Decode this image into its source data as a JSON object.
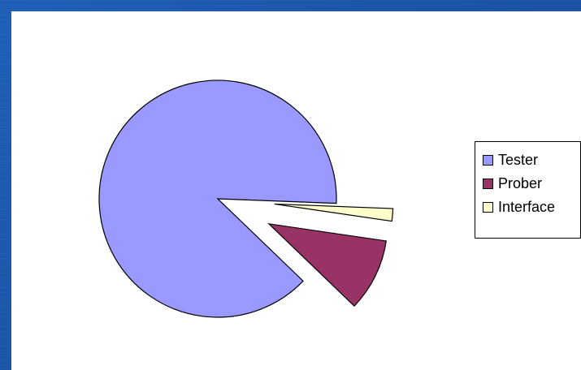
{
  "chart_data": {
    "type": "pie",
    "title": "",
    "labels": [
      "Tester",
      "Prober",
      "Interface"
    ],
    "values": [
      88.4,
      9.9,
      1.7
    ],
    "colors": [
      "#9999ff",
      "#993366",
      "#ffffcc"
    ],
    "exploded": [
      false,
      true,
      true
    ],
    "legend": {
      "position": "right",
      "items": [
        {
          "label": "Tester",
          "color": "#9999ff"
        },
        {
          "label": "Prober",
          "color": "#993366"
        },
        {
          "label": "Interface",
          "color": "#ffffcc"
        }
      ]
    }
  },
  "theme": {
    "slide_background": "#1a55a8",
    "plot_background": "#ffffff",
    "outline": "#000000"
  }
}
